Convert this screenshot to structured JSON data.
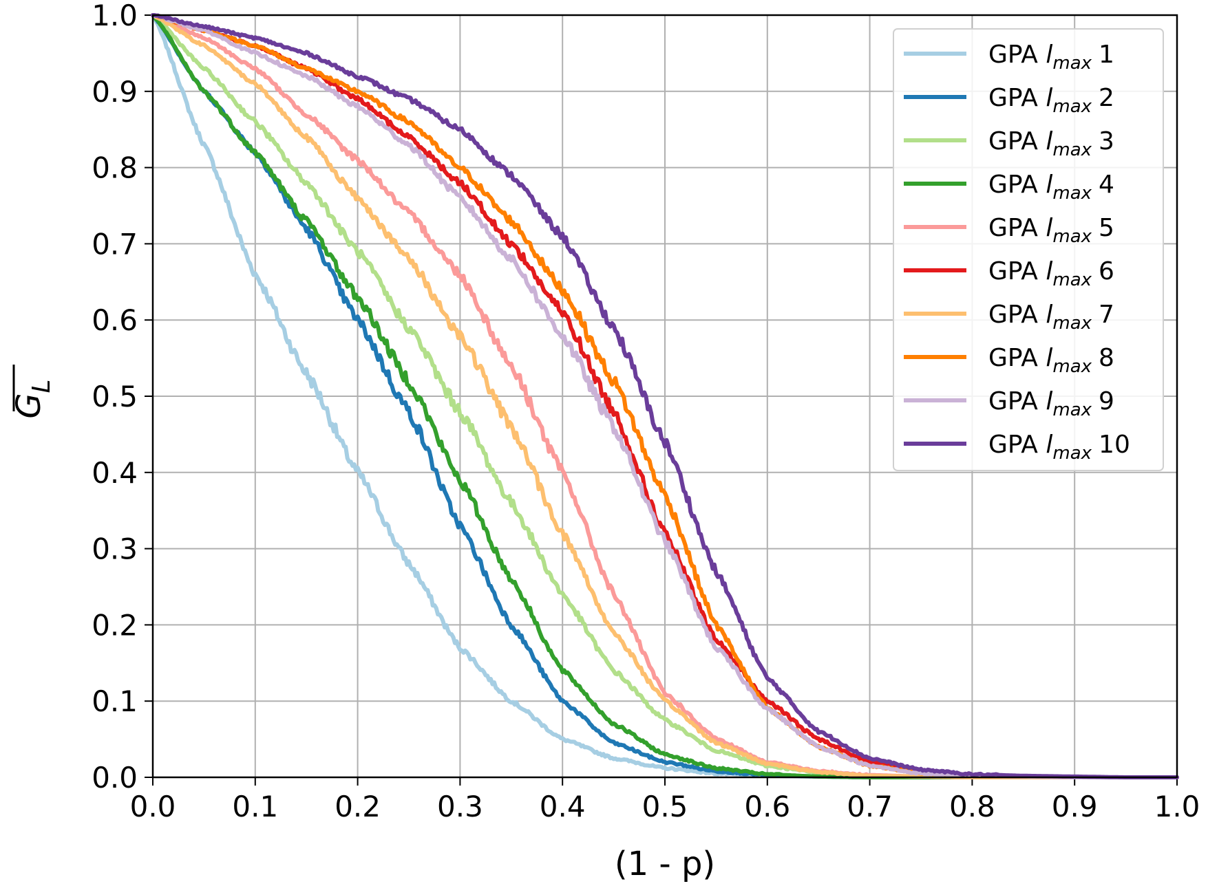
{
  "chart_data": {
    "type": "line",
    "xlabel": "(1 - p)",
    "ylabel_main": "G",
    "ylabel_sub": "L",
    "xlim": [
      0.0,
      1.0
    ],
    "ylim": [
      0.0,
      1.0
    ],
    "xticks": [
      "0.0",
      "0.1",
      "0.2",
      "0.3",
      "0.4",
      "0.5",
      "0.6",
      "0.7",
      "0.8",
      "0.9",
      "1.0"
    ],
    "yticks": [
      "0.0",
      "0.1",
      "0.2",
      "0.3",
      "0.4",
      "0.5",
      "0.6",
      "0.7",
      "0.8",
      "0.9",
      "1.0"
    ],
    "grid": true,
    "legend_position": "top-right",
    "x": [
      0.0,
      0.05,
      0.1,
      0.15,
      0.2,
      0.25,
      0.3,
      0.35,
      0.4,
      0.45,
      0.5,
      0.55,
      0.6,
      0.65,
      0.7,
      0.75,
      0.8,
      0.85,
      0.9,
      0.95,
      1.0
    ],
    "series": [
      {
        "legend_prefix": "GPA ",
        "legend_imax": "l",
        "legend_sub": "max",
        "legend_num": "1",
        "color": "#a6cee3",
        "values": [
          1.0,
          0.83,
          0.66,
          0.53,
          0.4,
          0.28,
          0.17,
          0.1,
          0.05,
          0.025,
          0.012,
          0.005,
          0.002,
          0.001,
          0.0,
          0.0,
          0.0,
          0.0,
          0.0,
          0.0,
          0.0
        ]
      },
      {
        "legend_prefix": "GPA ",
        "legend_imax": "l",
        "legend_sub": "max",
        "legend_num": "2",
        "color": "#1f78b4",
        "values": [
          1.0,
          0.9,
          0.82,
          0.72,
          0.6,
          0.48,
          0.33,
          0.2,
          0.1,
          0.045,
          0.02,
          0.008,
          0.003,
          0.001,
          0.0,
          0.0,
          0.0,
          0.0,
          0.0,
          0.0,
          0.0
        ]
      },
      {
        "legend_prefix": "GPA ",
        "legend_imax": "l",
        "legend_sub": "max",
        "legend_num": "3",
        "color": "#b2df8a",
        "values": [
          1.0,
          0.93,
          0.86,
          0.78,
          0.69,
          0.59,
          0.48,
          0.36,
          0.24,
          0.14,
          0.075,
          0.035,
          0.015,
          0.006,
          0.002,
          0.001,
          0.0,
          0.0,
          0.0,
          0.0,
          0.0
        ]
      },
      {
        "legend_prefix": "GPA ",
        "legend_imax": "l",
        "legend_sub": "max",
        "legend_num": "4",
        "color": "#33a02c",
        "values": [
          1.0,
          0.9,
          0.82,
          0.73,
          0.63,
          0.52,
          0.39,
          0.26,
          0.14,
          0.07,
          0.03,
          0.012,
          0.004,
          0.001,
          0.0,
          0.0,
          0.0,
          0.0,
          0.0,
          0.0,
          0.0
        ]
      },
      {
        "legend_prefix": "GPA ",
        "legend_imax": "l",
        "legend_sub": "max",
        "legend_num": "5",
        "color": "#fb9a99",
        "values": [
          1.0,
          0.97,
          0.93,
          0.87,
          0.81,
          0.74,
          0.66,
          0.54,
          0.4,
          0.24,
          0.11,
          0.05,
          0.02,
          0.008,
          0.003,
          0.001,
          0.0,
          0.0,
          0.0,
          0.0,
          0.0
        ]
      },
      {
        "legend_prefix": "GPA ",
        "legend_imax": "l",
        "legend_sub": "max",
        "legend_num": "6",
        "color": "#e31a1c",
        "values": [
          1.0,
          0.98,
          0.96,
          0.93,
          0.89,
          0.84,
          0.78,
          0.7,
          0.61,
          0.48,
          0.32,
          0.18,
          0.1,
          0.05,
          0.02,
          0.008,
          0.003,
          0.001,
          0.0,
          0.0,
          0.0
        ]
      },
      {
        "legend_prefix": "GPA ",
        "legend_imax": "l",
        "legend_sub": "max",
        "legend_num": "7",
        "color": "#fdbf6f",
        "values": [
          1.0,
          0.96,
          0.91,
          0.84,
          0.76,
          0.68,
          0.58,
          0.46,
          0.32,
          0.19,
          0.1,
          0.045,
          0.018,
          0.007,
          0.002,
          0.001,
          0.0,
          0.0,
          0.0,
          0.0,
          0.0
        ]
      },
      {
        "legend_prefix": "GPA ",
        "legend_imax": "l",
        "legend_sub": "max",
        "legend_num": "8",
        "color": "#ff7f00",
        "values": [
          1.0,
          0.98,
          0.96,
          0.93,
          0.9,
          0.86,
          0.8,
          0.73,
          0.64,
          0.52,
          0.37,
          0.2,
          0.09,
          0.04,
          0.015,
          0.006,
          0.002,
          0.001,
          0.0,
          0.0,
          0.0
        ]
      },
      {
        "legend_prefix": "GPA ",
        "legend_imax": "l",
        "legend_sub": "max",
        "legend_num": "9",
        "color": "#cab2d6",
        "values": [
          1.0,
          0.98,
          0.95,
          0.92,
          0.88,
          0.83,
          0.76,
          0.68,
          0.58,
          0.46,
          0.31,
          0.17,
          0.09,
          0.04,
          0.015,
          0.005,
          0.002,
          0.001,
          0.0,
          0.0,
          0.0
        ]
      },
      {
        "legend_prefix": "GPA ",
        "legend_imax": "l",
        "legend_sub": "max",
        "legend_num": "10",
        "color": "#6a3d9a",
        "values": [
          1.0,
          0.985,
          0.97,
          0.95,
          0.92,
          0.89,
          0.85,
          0.79,
          0.71,
          0.59,
          0.44,
          0.27,
          0.13,
          0.06,
          0.025,
          0.01,
          0.004,
          0.002,
          0.001,
          0.0,
          0.0
        ]
      }
    ]
  }
}
